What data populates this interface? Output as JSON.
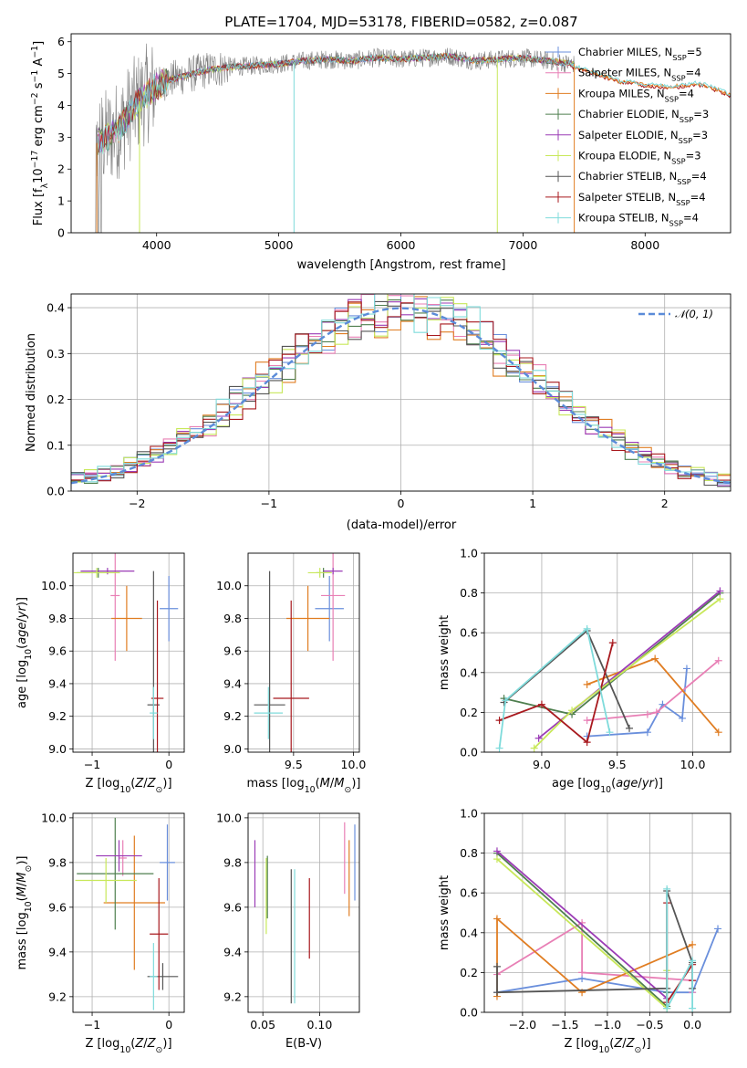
{
  "figure": {
    "title": "PLATE=1704, MJD=53178, FIBERID=0582, z=0.087"
  },
  "colors": {
    "Chabrier MILES": "#6a8fdc",
    "Salpeter MILES": "#e87fb5",
    "Kroupa MILES": "#e07d22",
    "Chabrier ELODIE": "#4f7f4f",
    "Salpeter ELODIE": "#9b3cb6",
    "Kroupa ELODIE": "#c8e85a",
    "Chabrier STELIB": "#555555",
    "Salpeter STELIB": "#a8191e",
    "Kroupa STELIB": "#7fdbdb",
    "spectrum": "#808080"
  },
  "chart_data": [
    {
      "type": "line",
      "id": "spectrum",
      "xlabel": "wavelength [Angstrom, rest frame]",
      "ylabel": "Flux [f_λ 10^-17 erg cm^-2 s^-1 A^-1]",
      "xlim": [
        3300,
        8700
      ],
      "ylim": [
        0,
        6.25
      ],
      "xticks": [
        4000,
        5000,
        6000,
        7000,
        8000
      ],
      "yticks": [
        0,
        1,
        2,
        3,
        4,
        5,
        6
      ],
      "continuum": {
        "x": [
          3500,
          3600,
          3700,
          3800,
          3900,
          4000,
          4100,
          4200,
          4300,
          4400,
          4600,
          4800,
          5000,
          5200,
          5400,
          5600,
          5800,
          6000,
          6200,
          6400,
          6600,
          6800,
          7000,
          7200,
          7400
        ],
        "y": [
          2.8,
          3.0,
          3.3,
          3.9,
          4.3,
          4.6,
          4.8,
          4.9,
          5.0,
          5.1,
          5.2,
          5.25,
          5.3,
          5.4,
          5.45,
          5.4,
          5.5,
          5.45,
          5.5,
          5.55,
          5.4,
          5.45,
          5.5,
          5.4,
          5.3
        ]
      },
      "model_tail": {
        "x": [
          7400,
          7500,
          7600,
          7700,
          7800,
          7900,
          8000,
          8100,
          8200,
          8300,
          8400,
          8500,
          8600,
          8700
        ],
        "y": [
          5.2,
          5.1,
          4.95,
          4.85,
          4.7,
          4.7,
          4.6,
          4.6,
          4.55,
          4.6,
          4.65,
          4.6,
          4.45,
          4.3
        ]
      },
      "series": [
        {
          "name": "Chabrier MILES, N_SSP=5",
          "label_main": "Chabrier MILES, N",
          "label_sub": "SSP",
          "label_tail": "=5",
          "key": "Chabrier MILES"
        },
        {
          "name": "Salpeter MILES, N_SSP=4",
          "label_main": "Salpeter MILES, N",
          "label_sub": "SSP",
          "label_tail": "=4",
          "key": "Salpeter MILES"
        },
        {
          "name": "Kroupa MILES, N_SSP=4",
          "label_main": "Kroupa MILES, N",
          "label_sub": "SSP",
          "label_tail": "=4",
          "key": "Kroupa MILES"
        },
        {
          "name": "Chabrier ELODIE, N_SSP=3",
          "label_main": "Chabrier ELODIE, N",
          "label_sub": "SSP",
          "label_tail": "=3",
          "key": "Chabrier ELODIE"
        },
        {
          "name": "Salpeter ELODIE, N_SSP=3",
          "label_main": "Salpeter ELODIE, N",
          "label_sub": "SSP",
          "label_tail": "=3",
          "key": "Salpeter ELODIE"
        },
        {
          "name": "Kroupa ELODIE, N_SSP=3",
          "label_main": "Kroupa ELODIE, N",
          "label_sub": "SSP",
          "label_tail": "=3",
          "key": "Kroupa ELODIE"
        },
        {
          "name": "Chabrier STELIB, N_SSP=4",
          "label_main": "Chabrier STELIB, N",
          "label_sub": "SSP",
          "label_tail": "=4",
          "key": "Chabrier STELIB"
        },
        {
          "name": "Salpeter STELIB, N_SSP=4",
          "label_main": "Salpeter STELIB, N",
          "label_sub": "SSP",
          "label_tail": "=4",
          "key": "Salpeter STELIB"
        },
        {
          "name": "Kroupa STELIB, N_SSP=4",
          "label_main": "Kroupa STELIB, N",
          "label_sub": "SSP",
          "label_tail": "=4",
          "key": "Kroupa STELIB"
        }
      ],
      "legend": "right"
    },
    {
      "type": "line",
      "id": "residuals",
      "xlabel": "(data-model)/error",
      "ylabel": "Normed distribution",
      "xlim": [
        -2.5,
        2.5
      ],
      "ylim": [
        0,
        0.43
      ],
      "xticks": [
        -2,
        -1,
        0,
        1,
        2
      ],
      "yticks": [
        0.0,
        0.1,
        0.2,
        0.3,
        0.4
      ],
      "grid": true,
      "bin_width": 0.1,
      "reference": {
        "name": "N(0,1)",
        "label": "𝒩(0, 1)",
        "mean": 0,
        "sigma": 1,
        "color": "#5b8bd8"
      },
      "legend": "top-right"
    },
    {
      "type": "scatter",
      "id": "age_vs_Z",
      "xlabel": "Z [log10(Z/Z⊙)]",
      "ylabel": "age  [log10(age/yr)]",
      "xlim": [
        -1.25,
        0.2
      ],
      "ylim": [
        8.98,
        10.2
      ],
      "xticks": [
        -1,
        0
      ],
      "yticks": [
        9.0,
        9.2,
        9.4,
        9.6,
        9.8,
        10.0
      ],
      "grid": true,
      "points": [
        {
          "key": "Chabrier MILES",
          "x": 0.0,
          "y": 9.86,
          "xerr": 0.12,
          "yerr": 0.2
        },
        {
          "key": "Salpeter MILES",
          "x": -0.7,
          "y": 9.94,
          "xerr": 0.06,
          "yerr": 0.4
        },
        {
          "key": "Kroupa MILES",
          "x": -0.55,
          "y": 9.8,
          "xerr": 0.2,
          "yerr": 0.2
        },
        {
          "key": "Chabrier ELODIE",
          "x": -0.92,
          "y": 10.08,
          "xerr": 0.28,
          "yerr": 0.03
        },
        {
          "key": "Salpeter ELODIE",
          "x": -0.8,
          "y": 10.09,
          "xerr": 0.35,
          "yerr": 0.02
        },
        {
          "key": "Kroupa ELODIE",
          "x": -0.94,
          "y": 10.08,
          "xerr": 0.3,
          "yerr": 0.03
        },
        {
          "key": "Chabrier STELIB",
          "x": -0.2,
          "y": 9.27,
          "xerr": 0.08,
          "yerr": 0.82
        },
        {
          "key": "Salpeter STELIB",
          "x": -0.15,
          "y": 9.31,
          "xerr": 0.08,
          "yerr": 0.6
        },
        {
          "key": "Kroupa STELIB",
          "x": -0.2,
          "y": 9.22,
          "xerr": 0.05,
          "yerr": 0.16
        }
      ]
    },
    {
      "type": "scatter",
      "id": "age_vs_mass",
      "xlabel": "mass [log10(M/M⊙)]",
      "ylabel": "",
      "xlim": [
        9.12,
        10.05
      ],
      "ylim": [
        8.98,
        10.2
      ],
      "xticks": [
        9.5,
        10.0
      ],
      "yticks": [
        9.0,
        9.2,
        9.4,
        9.6,
        9.8,
        10.0
      ],
      "grid": true,
      "points": [
        {
          "key": "Chabrier MILES",
          "x": 9.8,
          "y": 9.86,
          "xerr": 0.12,
          "yerr": 0.2
        },
        {
          "key": "Salpeter MILES",
          "x": 9.83,
          "y": 9.94,
          "xerr": 0.1,
          "yerr": 0.4
        },
        {
          "key": "Kroupa MILES",
          "x": 9.62,
          "y": 9.8,
          "xerr": 0.18,
          "yerr": 0.2
        },
        {
          "key": "Chabrier ELODIE",
          "x": 9.75,
          "y": 10.08,
          "xerr": 0.06,
          "yerr": 0.03
        },
        {
          "key": "Salpeter ELODIE",
          "x": 9.83,
          "y": 10.09,
          "xerr": 0.08,
          "yerr": 0.02
        },
        {
          "key": "Kroupa ELODIE",
          "x": 9.72,
          "y": 10.08,
          "xerr": 0.1,
          "yerr": 0.03
        },
        {
          "key": "Chabrier STELIB",
          "x": 9.3,
          "y": 9.27,
          "xerr": 0.13,
          "yerr": 0.82
        },
        {
          "key": "Salpeter STELIB",
          "x": 9.48,
          "y": 9.31,
          "xerr": 0.15,
          "yerr": 0.6
        },
        {
          "key": "Kroupa STELIB",
          "x": 9.29,
          "y": 9.22,
          "xerr": 0.12,
          "yerr": 0.16
        }
      ]
    },
    {
      "type": "line",
      "id": "weight_vs_age",
      "xlabel": "age  [log10(age/yr)]",
      "ylabel": "mass weight",
      "xlim": [
        8.62,
        10.25
      ],
      "ylim": [
        0,
        1.0
      ],
      "xticks": [
        9.0,
        9.5,
        10.0
      ],
      "yticks": [
        0.0,
        0.2,
        0.4,
        0.6,
        0.8,
        1.0
      ],
      "grid": true,
      "series": [
        {
          "key": "Chabrier MILES",
          "x": [
            9.3,
            9.7,
            9.8,
            9.93,
            9.96
          ],
          "y": [
            0.08,
            0.1,
            0.24,
            0.17,
            0.42
          ]
        },
        {
          "key": "Salpeter MILES",
          "x": [
            9.3,
            9.7,
            9.76,
            10.17
          ],
          "y": [
            0.16,
            0.19,
            0.2,
            0.46
          ]
        },
        {
          "key": "Kroupa MILES",
          "x": [
            9.3,
            9.75,
            10.17
          ],
          "y": [
            0.34,
            0.47,
            0.1
          ]
        },
        {
          "key": "Chabrier ELODIE",
          "x": [
            8.75,
            9.2,
            10.18
          ],
          "y": [
            0.27,
            0.19,
            0.8
          ]
        },
        {
          "key": "Salpeter ELODIE",
          "x": [
            8.98,
            10.18
          ],
          "y": [
            0.07,
            0.81
          ]
        },
        {
          "key": "Kroupa ELODIE",
          "x": [
            8.95,
            9.2,
            10.18
          ],
          "y": [
            0.02,
            0.21,
            0.77
          ]
        },
        {
          "key": "Chabrier STELIB",
          "x": [
            8.75,
            9.3,
            9.58
          ],
          "y": [
            0.25,
            0.61,
            0.12
          ]
        },
        {
          "key": "Salpeter STELIB",
          "x": [
            8.72,
            9.0,
            9.3,
            9.47
          ],
          "y": [
            0.16,
            0.24,
            0.05,
            0.55
          ]
        },
        {
          "key": "Kroupa STELIB",
          "x": [
            8.72,
            8.76,
            9.3,
            9.45
          ],
          "y": [
            0.02,
            0.26,
            0.62,
            0.1
          ]
        }
      ]
    },
    {
      "type": "scatter",
      "id": "mass_vs_Z",
      "xlabel": "Z [log10(Z/Z⊙)]",
      "ylabel": "mass [log10(M/M⊙)]",
      "xlim": [
        -1.25,
        0.2
      ],
      "ylim": [
        9.13,
        10.02
      ],
      "xticks": [
        -1,
        0
      ],
      "yticks": [
        9.2,
        9.4,
        9.6,
        9.8,
        10.0
      ],
      "grid": true,
      "points": [
        {
          "key": "Chabrier MILES",
          "x": -0.02,
          "y": 9.8,
          "xerr": 0.1,
          "yerr": 0.17
        },
        {
          "key": "Salpeter MILES",
          "x": -0.6,
          "y": 9.82,
          "xerr": 0.05,
          "yerr": 0.08
        },
        {
          "key": "Kroupa MILES",
          "x": -0.45,
          "y": 9.62,
          "xerr": 0.4,
          "yerr": 0.3
        },
        {
          "key": "Chabrier ELODIE",
          "x": -0.7,
          "y": 9.75,
          "xerr": 0.5,
          "yerr": 0.25
        },
        {
          "key": "Salpeter ELODIE",
          "x": -0.65,
          "y": 9.83,
          "xerr": 0.3,
          "yerr": 0.07
        },
        {
          "key": "Kroupa ELODIE",
          "x": -0.82,
          "y": 9.72,
          "xerr": 0.4,
          "yerr": 0.1
        },
        {
          "key": "Chabrier STELIB",
          "x": -0.08,
          "y": 9.29,
          "xerr": 0.2,
          "yerr": 0.06
        },
        {
          "key": "Salpeter STELIB",
          "x": -0.13,
          "y": 9.48,
          "xerr": 0.12,
          "yerr": 0.25
        },
        {
          "key": "Kroupa STELIB",
          "x": -0.2,
          "y": 9.29,
          "xerr": 0.05,
          "yerr": 0.15
        }
      ]
    },
    {
      "type": "scatter",
      "id": "mass_vs_ebv",
      "xlabel": "E(B-V)",
      "ylabel": "",
      "xlim": [
        0.037,
        0.135
      ],
      "ylim": [
        9.13,
        10.02
      ],
      "xticks": [
        0.05,
        0.1
      ],
      "xticklabels": [
        "0.05",
        "0.10"
      ],
      "yticks": [
        9.2,
        9.4,
        9.6,
        9.8,
        10.0
      ],
      "grid": true,
      "points": [
        {
          "key": "Chabrier MILES",
          "x": 0.131,
          "y": 9.8,
          "yerr": 0.17
        },
        {
          "key": "Salpeter MILES",
          "x": 0.122,
          "y": 9.82,
          "yerr": 0.16
        },
        {
          "key": "Kroupa MILES",
          "x": 0.126,
          "y": 9.73,
          "yerr": 0.17
        },
        {
          "key": "Chabrier ELODIE",
          "x": 0.054,
          "y": 9.69,
          "yerr": 0.14
        },
        {
          "key": "Salpeter ELODIE",
          "x": 0.043,
          "y": 9.75,
          "yerr": 0.15
        },
        {
          "key": "Kroupa ELODIE",
          "x": 0.053,
          "y": 9.65,
          "yerr": 0.17
        },
        {
          "key": "Chabrier STELIB",
          "x": 0.075,
          "y": 9.47,
          "yerr": 0.3
        },
        {
          "key": "Salpeter STELIB",
          "x": 0.091,
          "y": 9.55,
          "yerr": 0.18
        },
        {
          "key": "Kroupa STELIB",
          "x": 0.078,
          "y": 9.47,
          "yerr": 0.3
        }
      ]
    },
    {
      "type": "line",
      "id": "weight_vs_Z",
      "xlabel": "Z [log10(Z/Z⊙)]",
      "ylabel": "mass weight",
      "xlim": [
        -2.45,
        0.45
      ],
      "ylim": [
        0,
        1.0
      ],
      "xticks": [
        -2.0,
        -1.5,
        -1.0,
        -0.5,
        0.0
      ],
      "yticks": [
        0.0,
        0.2,
        0.4,
        0.6,
        0.8,
        1.0
      ],
      "grid": true,
      "series": [
        {
          "key": "Chabrier MILES",
          "x": [
            -2.3,
            -1.3,
            -0.3,
            0.0,
            0.3
          ],
          "y": [
            0.1,
            0.17,
            0.1,
            0.1,
            0.42
          ]
        },
        {
          "key": "Salpeter MILES",
          "x": [
            -2.3,
            -1.3,
            -1.3,
            0.0,
            0.0
          ],
          "y": [
            0.19,
            0.45,
            0.2,
            0.16,
            0.1
          ]
        },
        {
          "key": "Kroupa MILES",
          "x": [
            -2.3,
            -2.3,
            -1.3,
            0.0
          ],
          "y": [
            0.08,
            0.47,
            0.1,
            0.34
          ]
        },
        {
          "key": "Chabrier ELODIE",
          "x": [
            -2.3,
            -0.3,
            -0.3
          ],
          "y": [
            0.8,
            0.03,
            0.1
          ]
        },
        {
          "key": "Salpeter ELODIE",
          "x": [
            -2.3,
            -0.3
          ],
          "y": [
            0.81,
            0.07
          ]
        },
        {
          "key": "Kroupa ELODIE",
          "x": [
            -2.3,
            -0.3,
            -0.3
          ],
          "y": [
            0.77,
            0.02,
            0.21
          ]
        },
        {
          "key": "Chabrier STELIB",
          "x": [
            -2.3,
            -2.3,
            -0.3,
            -0.3,
            0.0,
            0.0
          ],
          "y": [
            0.23,
            0.1,
            0.12,
            0.61,
            0.25,
            0.12
          ]
        },
        {
          "key": "Salpeter STELIB",
          "x": [
            -0.3,
            -0.3,
            0.0,
            0.0
          ],
          "y": [
            0.55,
            0.05,
            0.24,
            0.16
          ]
        },
        {
          "key": "Kroupa STELIB",
          "x": [
            -0.3,
            -0.3,
            0.0,
            0.0
          ],
          "y": [
            0.62,
            0.02,
            0.26,
            0.02
          ]
        }
      ]
    }
  ]
}
